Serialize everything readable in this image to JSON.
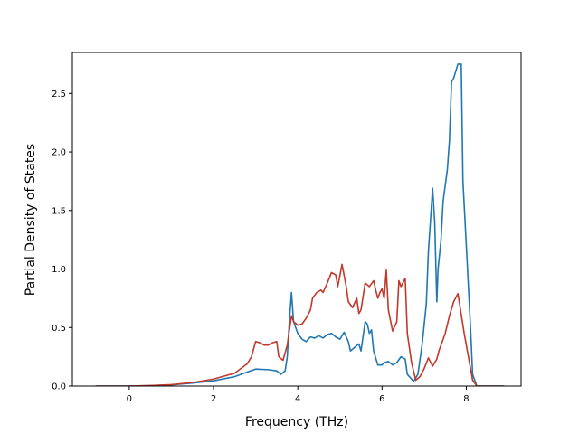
{
  "chart_data": {
    "type": "line",
    "title": "",
    "xlabel": "Frequency (THz)",
    "ylabel": "Partial Density of States",
    "xlim": [
      -1.35,
      9.3
    ],
    "ylim": [
      0,
      2.85
    ],
    "xticks": [
      0,
      2,
      4,
      6,
      8
    ],
    "xtick_labels": [
      "0",
      "2",
      "4",
      "6",
      "8"
    ],
    "yticks": [
      0.0,
      0.5,
      1.0,
      1.5,
      2.0,
      2.5
    ],
    "ytick_labels": [
      "0.0",
      "0.5",
      "1.0",
      "1.5",
      "2.0",
      "2.5"
    ],
    "grid": false,
    "legend": "none",
    "series": [
      {
        "color": "#1f77b4",
        "points": [
          [
            -0.8,
            0
          ],
          [
            0,
            0
          ],
          [
            0.5,
            0.003
          ],
          [
            1.0,
            0.01
          ],
          [
            1.5,
            0.025
          ],
          [
            2.0,
            0.045
          ],
          [
            2.5,
            0.08
          ],
          [
            2.8,
            0.12
          ],
          [
            3.0,
            0.145
          ],
          [
            3.3,
            0.14
          ],
          [
            3.5,
            0.13
          ],
          [
            3.6,
            0.1
          ],
          [
            3.7,
            0.13
          ],
          [
            3.75,
            0.25
          ],
          [
            3.8,
            0.55
          ],
          [
            3.85,
            0.8
          ],
          [
            3.9,
            0.55
          ],
          [
            4.0,
            0.45
          ],
          [
            4.1,
            0.4
          ],
          [
            4.2,
            0.38
          ],
          [
            4.3,
            0.42
          ],
          [
            4.4,
            0.41
          ],
          [
            4.5,
            0.43
          ],
          [
            4.6,
            0.41
          ],
          [
            4.7,
            0.44
          ],
          [
            4.8,
            0.45
          ],
          [
            4.9,
            0.42
          ],
          [
            5.0,
            0.4
          ],
          [
            5.1,
            0.46
          ],
          [
            5.2,
            0.38
          ],
          [
            5.25,
            0.3
          ],
          [
            5.35,
            0.33
          ],
          [
            5.45,
            0.36
          ],
          [
            5.5,
            0.3
          ],
          [
            5.6,
            0.55
          ],
          [
            5.65,
            0.53
          ],
          [
            5.7,
            0.45
          ],
          [
            5.75,
            0.48
          ],
          [
            5.8,
            0.3
          ],
          [
            5.9,
            0.18
          ],
          [
            6.0,
            0.18
          ],
          [
            6.05,
            0.2
          ],
          [
            6.15,
            0.21
          ],
          [
            6.25,
            0.18
          ],
          [
            6.35,
            0.2
          ],
          [
            6.45,
            0.25
          ],
          [
            6.55,
            0.23
          ],
          [
            6.6,
            0.1
          ],
          [
            6.75,
            0.04
          ],
          [
            6.85,
            0.1
          ],
          [
            6.95,
            0.35
          ],
          [
            7.05,
            0.7
          ],
          [
            7.1,
            1.15
          ],
          [
            7.2,
            1.69
          ],
          [
            7.25,
            1.4
          ],
          [
            7.3,
            0.72
          ],
          [
            7.33,
            1.0
          ],
          [
            7.4,
            1.25
          ],
          [
            7.45,
            1.58
          ],
          [
            7.55,
            1.85
          ],
          [
            7.6,
            2.1
          ],
          [
            7.65,
            2.6
          ],
          [
            7.7,
            2.63
          ],
          [
            7.8,
            2.75
          ],
          [
            7.88,
            2.75
          ],
          [
            7.92,
            1.75
          ],
          [
            8.0,
            1.2
          ],
          [
            8.05,
            0.85
          ],
          [
            8.1,
            0.5
          ],
          [
            8.15,
            0.1
          ],
          [
            8.25,
            0
          ],
          [
            8.9,
            0
          ]
        ]
      },
      {
        "color": "#c0392b",
        "points": [
          [
            -0.8,
            0
          ],
          [
            0,
            0
          ],
          [
            0.5,
            0.004
          ],
          [
            1.0,
            0.012
          ],
          [
            1.5,
            0.03
          ],
          [
            2.0,
            0.06
          ],
          [
            2.5,
            0.11
          ],
          [
            2.8,
            0.19
          ],
          [
            2.9,
            0.25
          ],
          [
            3.0,
            0.38
          ],
          [
            3.1,
            0.37
          ],
          [
            3.2,
            0.35
          ],
          [
            3.3,
            0.35
          ],
          [
            3.4,
            0.37
          ],
          [
            3.5,
            0.38
          ],
          [
            3.55,
            0.25
          ],
          [
            3.65,
            0.22
          ],
          [
            3.75,
            0.35
          ],
          [
            3.85,
            0.6
          ],
          [
            3.9,
            0.55
          ],
          [
            4.0,
            0.52
          ],
          [
            4.1,
            0.53
          ],
          [
            4.2,
            0.58
          ],
          [
            4.3,
            0.65
          ],
          [
            4.35,
            0.75
          ],
          [
            4.45,
            0.8
          ],
          [
            4.55,
            0.82
          ],
          [
            4.6,
            0.8
          ],
          [
            4.7,
            0.88
          ],
          [
            4.8,
            0.97
          ],
          [
            4.9,
            0.95
          ],
          [
            4.95,
            0.85
          ],
          [
            5.05,
            1.04
          ],
          [
            5.15,
            0.85
          ],
          [
            5.2,
            0.72
          ],
          [
            5.3,
            0.67
          ],
          [
            5.4,
            0.75
          ],
          [
            5.45,
            0.62
          ],
          [
            5.5,
            0.65
          ],
          [
            5.6,
            0.88
          ],
          [
            5.7,
            0.85
          ],
          [
            5.8,
            0.9
          ],
          [
            5.85,
            0.82
          ],
          [
            5.9,
            0.75
          ],
          [
            5.95,
            0.8
          ],
          [
            6.0,
            0.83
          ],
          [
            6.05,
            0.75
          ],
          [
            6.1,
            0.99
          ],
          [
            6.15,
            0.65
          ],
          [
            6.25,
            0.47
          ],
          [
            6.35,
            0.55
          ],
          [
            6.4,
            0.9
          ],
          [
            6.45,
            0.85
          ],
          [
            6.55,
            0.92
          ],
          [
            6.6,
            0.45
          ],
          [
            6.7,
            0.2
          ],
          [
            6.8,
            0.05
          ],
          [
            6.9,
            0.08
          ],
          [
            7.0,
            0.15
          ],
          [
            7.1,
            0.24
          ],
          [
            7.2,
            0.17
          ],
          [
            7.3,
            0.23
          ],
          [
            7.35,
            0.3
          ],
          [
            7.5,
            0.45
          ],
          [
            7.6,
            0.6
          ],
          [
            7.7,
            0.72
          ],
          [
            7.8,
            0.79
          ],
          [
            7.85,
            0.68
          ],
          [
            7.95,
            0.45
          ],
          [
            8.05,
            0.25
          ],
          [
            8.15,
            0.05
          ],
          [
            8.25,
            0
          ],
          [
            8.9,
            0
          ]
        ]
      }
    ]
  }
}
